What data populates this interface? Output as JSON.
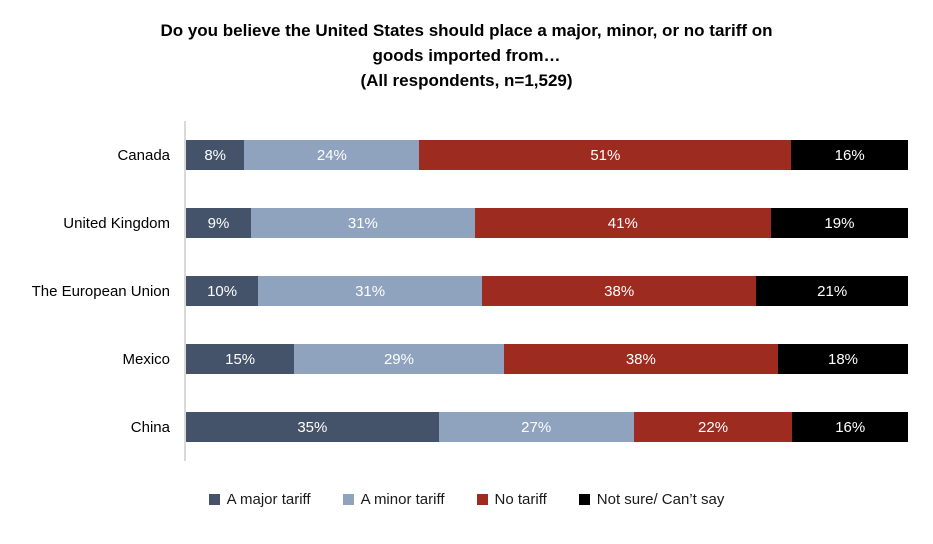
{
  "header": {
    "lines": [
      "Do you believe the United States should place a major, minor, or no tariff on",
      "goods imported from…",
      "(All respondents, n=1,529)"
    ]
  },
  "chart_data": {
    "type": "bar",
    "orientation": "horizontal",
    "stacked": true,
    "title": "Do you believe the United States should place a major, minor, or no tariff on goods imported from…",
    "subtitle": "(All respondents, n=1,529)",
    "categories": [
      "Canada",
      "United Kingdom",
      "The European Union",
      "Mexico",
      "China"
    ],
    "series": [
      {
        "name": "A major tariff",
        "color": "#44536A",
        "values": [
          8,
          9,
          10,
          15,
          35
        ]
      },
      {
        "name": "A minor tariff",
        "color": "#8FA3BE",
        "values": [
          24,
          31,
          31,
          29,
          27
        ]
      },
      {
        "name": "No tariff",
        "color": "#9E2B20",
        "values": [
          51,
          41,
          38,
          38,
          22
        ]
      },
      {
        "name": "Not sure/ Can’t say",
        "color": "#000000",
        "values": [
          16,
          19,
          21,
          18,
          16
        ]
      }
    ],
    "value_suffix": "%",
    "xlim": [
      0,
      100
    ],
    "grid": false,
    "legend_position": "bottom",
    "axis_line_color": "#D9D9D9",
    "data_label_color": "#FFFFFF"
  }
}
